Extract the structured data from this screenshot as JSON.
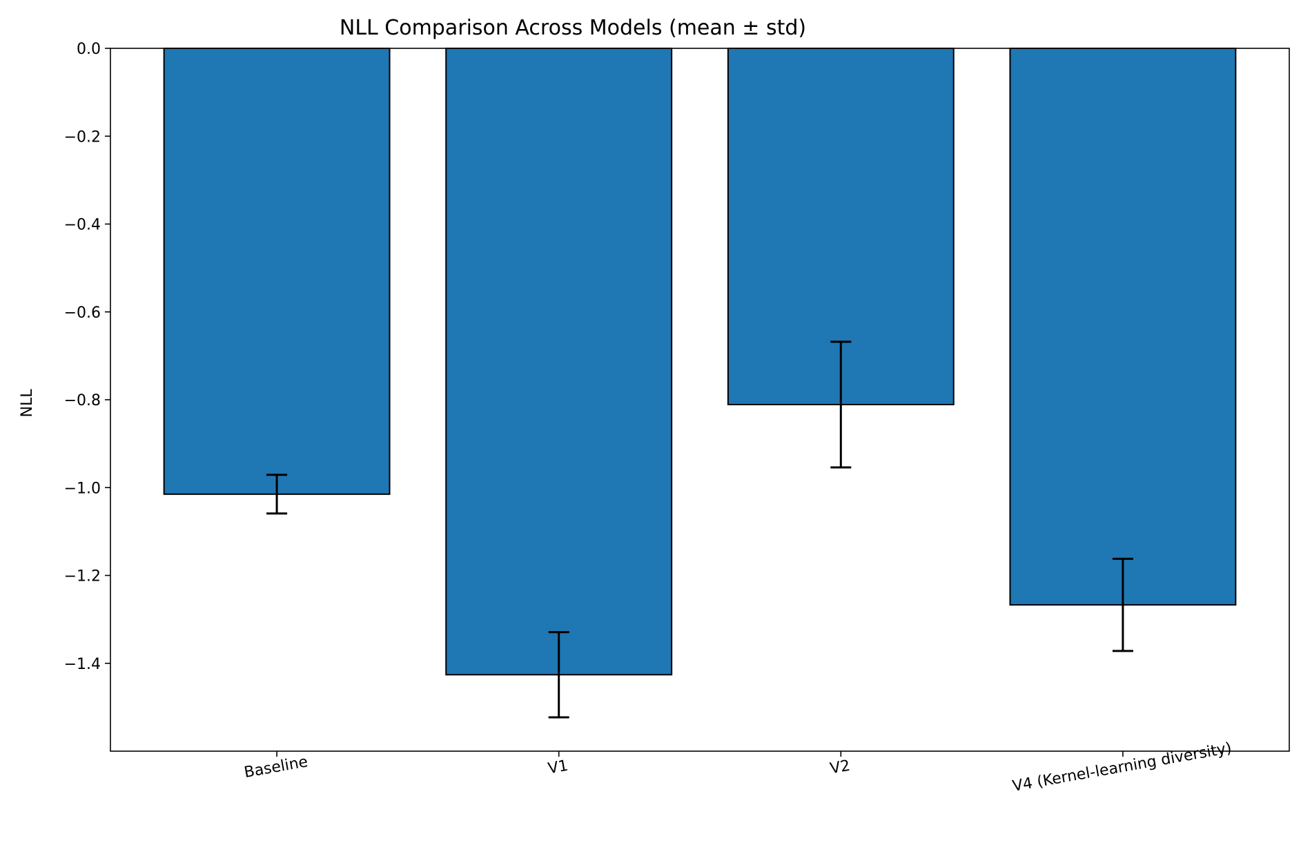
{
  "chart_data": {
    "type": "bar",
    "title": "NLL Comparison Across Models (mean ± std)",
    "xlabel": "",
    "ylabel": "NLL",
    "categories": [
      "Baseline",
      "V1",
      "V2",
      "V4 (Kernel-learning diversity)"
    ],
    "values": [
      -1.015,
      -1.426,
      -0.811,
      -1.267
    ],
    "errors": [
      0.044,
      0.097,
      0.143,
      0.105
    ],
    "ylim": [
      -1.6,
      0.0
    ],
    "yticks": [
      0.0,
      -0.2,
      -0.4,
      -0.6,
      -0.8,
      -1.0,
      -1.2,
      -1.4
    ],
    "ytick_labels": [
      "0.0",
      "−0.2",
      "−0.4",
      "−0.6",
      "−0.8",
      "−1.0",
      "−1.2",
      "−1.4"
    ],
    "grid": false,
    "bar_color": "#1f77b4",
    "edge_color": "#000000"
  }
}
